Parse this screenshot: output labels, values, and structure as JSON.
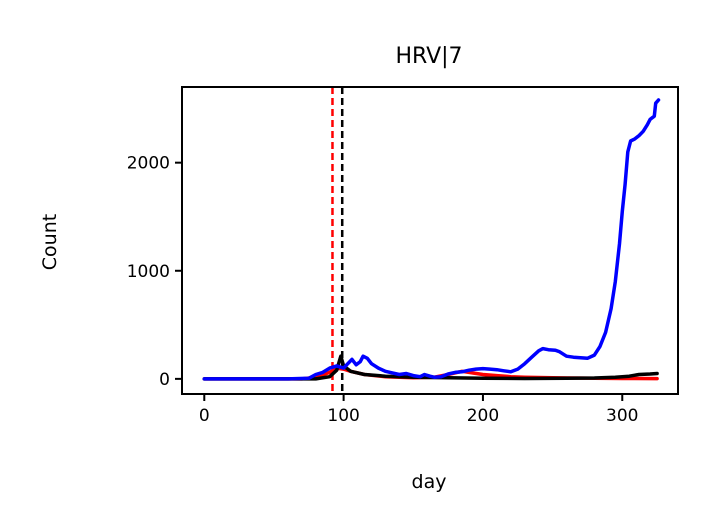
{
  "chart_data": {
    "type": "line",
    "title": "HRV|7",
    "xlabel": "day",
    "ylabel": "Count",
    "xlim": [
      -16,
      340
    ],
    "ylim": [
      -140,
      2700
    ],
    "x_ticks": [
      0,
      100,
      200,
      300
    ],
    "y_ticks": [
      0,
      1000,
      2000
    ],
    "grid": false,
    "legend": "none",
    "vlines": [
      {
        "x": 92,
        "color": "#ff0000",
        "style": "dashed"
      },
      {
        "x": 99,
        "color": "#000000",
        "style": "dashed"
      }
    ],
    "series": [
      {
        "color": "#ff0000",
        "points": [
          [
            0,
            0
          ],
          [
            70,
            0
          ],
          [
            80,
            15
          ],
          [
            90,
            60
          ],
          [
            95,
            100
          ],
          [
            100,
            90
          ],
          [
            105,
            70
          ],
          [
            115,
            40
          ],
          [
            130,
            20
          ],
          [
            150,
            10
          ],
          [
            165,
            15
          ],
          [
            175,
            40
          ],
          [
            185,
            70
          ],
          [
            190,
            60
          ],
          [
            200,
            40
          ],
          [
            210,
            30
          ],
          [
            220,
            20
          ],
          [
            230,
            15
          ],
          [
            250,
            10
          ],
          [
            280,
            5
          ],
          [
            300,
            3
          ],
          [
            325,
            2
          ]
        ]
      },
      {
        "color": "#000000",
        "points": [
          [
            0,
            0
          ],
          [
            80,
            0
          ],
          [
            90,
            20
          ],
          [
            95,
            80
          ],
          [
            98,
            210
          ],
          [
            100,
            120
          ],
          [
            105,
            70
          ],
          [
            115,
            40
          ],
          [
            130,
            25
          ],
          [
            150,
            15
          ],
          [
            175,
            10
          ],
          [
            200,
            5
          ],
          [
            230,
            3
          ],
          [
            260,
            5
          ],
          [
            280,
            8
          ],
          [
            295,
            15
          ],
          [
            305,
            25
          ],
          [
            312,
            40
          ],
          [
            320,
            45
          ],
          [
            325,
            50
          ]
        ]
      },
      {
        "color": "#0000ff",
        "points": [
          [
            0,
            0
          ],
          [
            60,
            0
          ],
          [
            75,
            5
          ],
          [
            80,
            40
          ],
          [
            85,
            60
          ],
          [
            90,
            100
          ],
          [
            95,
            120
          ],
          [
            100,
            100
          ],
          [
            103,
            140
          ],
          [
            106,
            180
          ],
          [
            109,
            130
          ],
          [
            112,
            160
          ],
          [
            114,
            210
          ],
          [
            117,
            190
          ],
          [
            120,
            140
          ],
          [
            125,
            100
          ],
          [
            130,
            70
          ],
          [
            135,
            55
          ],
          [
            140,
            40
          ],
          [
            145,
            50
          ],
          [
            150,
            30
          ],
          [
            155,
            20
          ],
          [
            158,
            40
          ],
          [
            162,
            25
          ],
          [
            165,
            15
          ],
          [
            170,
            20
          ],
          [
            175,
            45
          ],
          [
            180,
            60
          ],
          [
            185,
            65
          ],
          [
            190,
            80
          ],
          [
            195,
            90
          ],
          [
            200,
            95
          ],
          [
            205,
            90
          ],
          [
            210,
            85
          ],
          [
            215,
            75
          ],
          [
            220,
            65
          ],
          [
            225,
            90
          ],
          [
            230,
            140
          ],
          [
            235,
            200
          ],
          [
            240,
            260
          ],
          [
            243,
            280
          ],
          [
            247,
            270
          ],
          [
            252,
            265
          ],
          [
            255,
            250
          ],
          [
            260,
            210
          ],
          [
            265,
            200
          ],
          [
            270,
            195
          ],
          [
            275,
            190
          ],
          [
            280,
            220
          ],
          [
            284,
            300
          ],
          [
            288,
            430
          ],
          [
            292,
            650
          ],
          [
            295,
            900
          ],
          [
            298,
            1250
          ],
          [
            300,
            1550
          ],
          [
            302,
            1800
          ],
          [
            304,
            2100
          ],
          [
            306,
            2200
          ],
          [
            309,
            2220
          ],
          [
            312,
            2250
          ],
          [
            315,
            2290
          ],
          [
            318,
            2350
          ],
          [
            320,
            2400
          ],
          [
            323,
            2430
          ],
          [
            324,
            2550
          ],
          [
            326,
            2580
          ]
        ]
      }
    ]
  }
}
